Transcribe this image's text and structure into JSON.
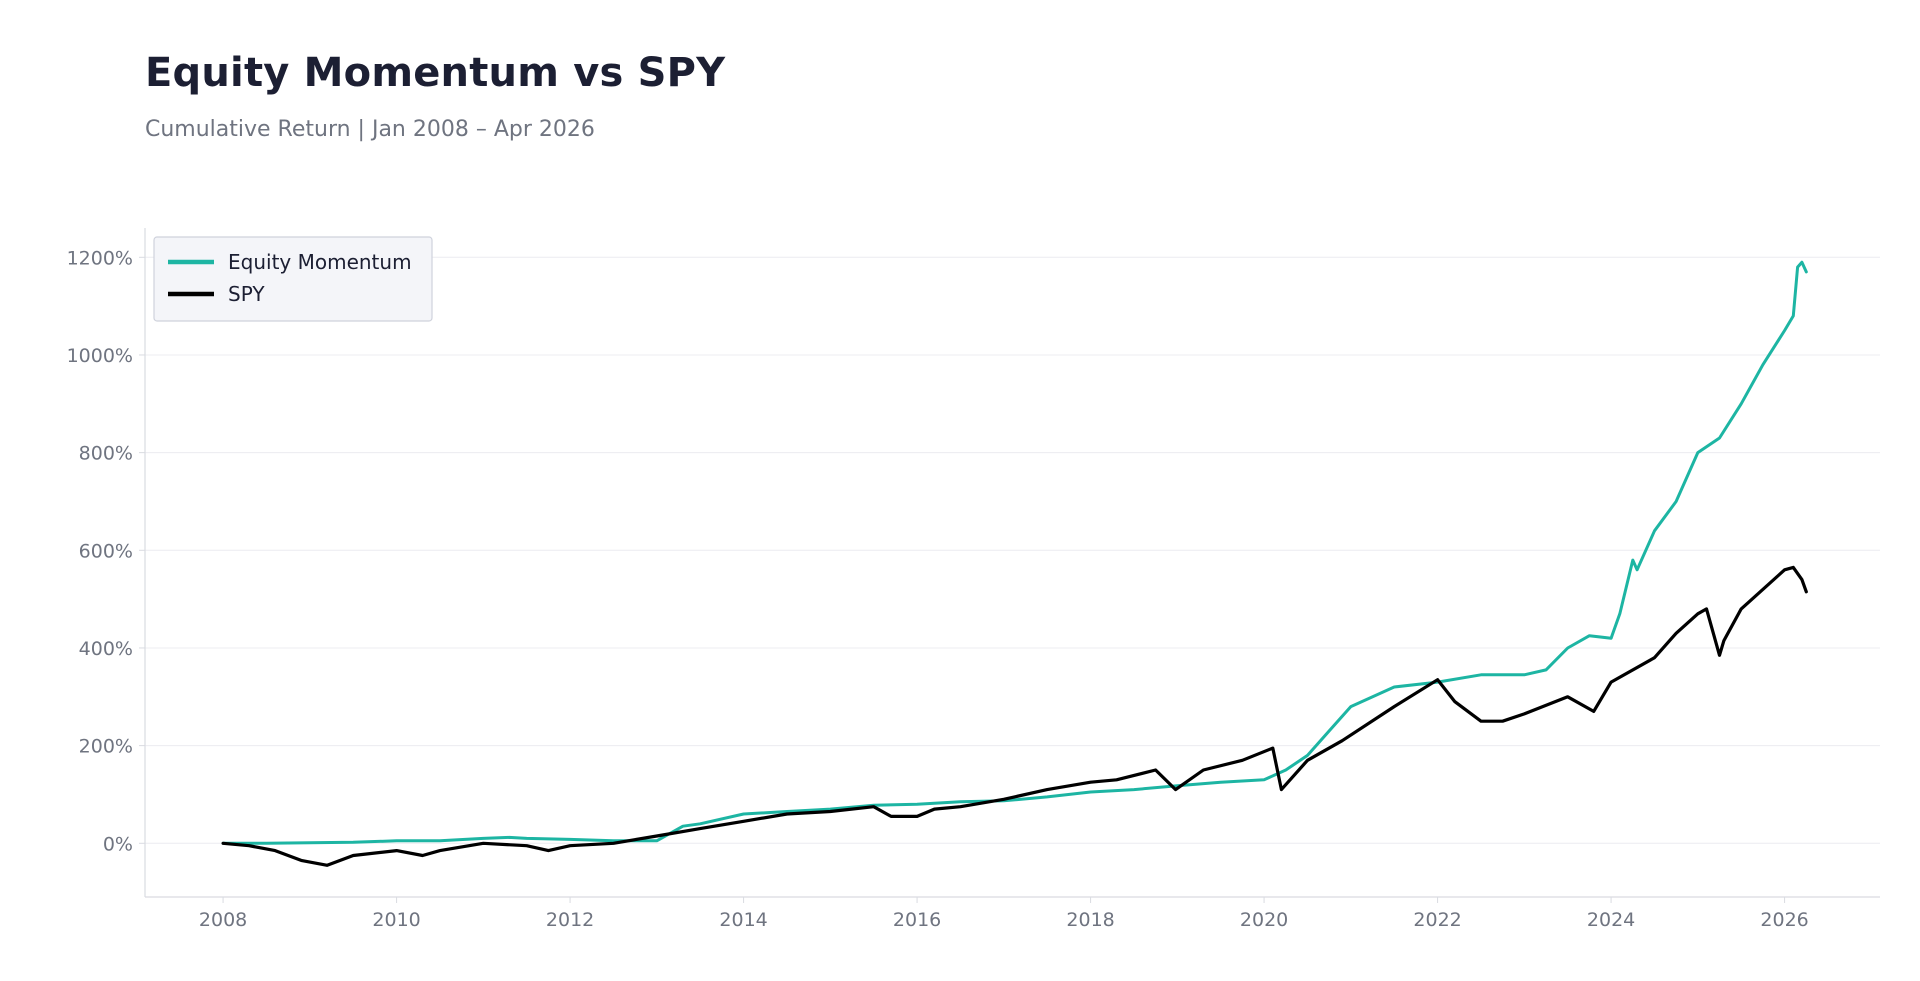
{
  "header": {
    "title": "Equity Momentum vs SPY",
    "subtitle": "Cumulative Return | Jan 2008 – Apr 2026"
  },
  "colors": {
    "momentum": "#1db5a3",
    "spy": "#000000",
    "grid": "#ececf0",
    "axis": "#d9dbe1",
    "legend_bg": "#f4f5f9",
    "legend_border": "#cfd2dc"
  },
  "chart_data": {
    "type": "line",
    "title": "Equity Momentum vs SPY",
    "subtitle": "Cumulative Return | Jan 2008 – Apr 2026",
    "xlabel": "",
    "ylabel": "",
    "xlim": [
      2007.1,
      2027.1
    ],
    "ylim": [
      -110,
      1260
    ],
    "x_ticks": [
      2008,
      2010,
      2012,
      2014,
      2016,
      2018,
      2020,
      2022,
      2024,
      2026
    ],
    "x_tick_labels": [
      "2008",
      "2010",
      "2012",
      "2014",
      "2016",
      "2018",
      "2020",
      "2022",
      "2024",
      "2026"
    ],
    "y_ticks": [
      0,
      200,
      400,
      600,
      800,
      1000,
      1200
    ],
    "y_tick_labels": [
      "0%",
      "200%",
      "400%",
      "600%",
      "800%",
      "1000%",
      "1200%"
    ],
    "grid": "horizontal",
    "legend_position": "top-left",
    "series": [
      {
        "name": "Equity Momentum",
        "color": "#1db5a3",
        "x": [
          2008.0,
          2008.5,
          2009.0,
          2009.5,
          2010.0,
          2010.5,
          2011.0,
          2011.3,
          2011.5,
          2012.0,
          2012.5,
          2013.0,
          2013.3,
          2013.5,
          2014.0,
          2014.5,
          2015.0,
          2015.5,
          2016.0,
          2016.5,
          2017.0,
          2017.5,
          2018.0,
          2018.5,
          2019.0,
          2019.5,
          2020.0,
          2020.25,
          2020.5,
          2020.75,
          2021.0,
          2021.5,
          2022.0,
          2022.5,
          2023.0,
          2023.25,
          2023.5,
          2023.75,
          2024.0,
          2024.1,
          2024.25,
          2024.3,
          2024.5,
          2024.75,
          2025.0,
          2025.25,
          2025.5,
          2025.75,
          2026.0,
          2026.1,
          2026.15,
          2026.2,
          2026.25
        ],
        "y": [
          0,
          0,
          1,
          2,
          5,
          5,
          10,
          12,
          10,
          8,
          5,
          5,
          35,
          40,
          60,
          65,
          70,
          78,
          80,
          85,
          87,
          95,
          105,
          110,
          118,
          125,
          130,
          150,
          180,
          230,
          280,
          320,
          330,
          345,
          345,
          355,
          400,
          425,
          420,
          470,
          580,
          560,
          640,
          700,
          800,
          830,
          900,
          980,
          1050,
          1080,
          1180,
          1190,
          1170
        ]
      },
      {
        "name": "SPY",
        "color": "#000000",
        "x": [
          2008.0,
          2008.3,
          2008.6,
          2008.9,
          2009.2,
          2009.5,
          2010.0,
          2010.3,
          2010.5,
          2011.0,
          2011.5,
          2011.75,
          2012.0,
          2012.5,
          2013.0,
          2013.5,
          2014.0,
          2014.5,
          2015.0,
          2015.5,
          2015.7,
          2016.0,
          2016.2,
          2016.5,
          2017.0,
          2017.5,
          2018.0,
          2018.3,
          2018.75,
          2018.98,
          2019.3,
          2019.75,
          2020.1,
          2020.2,
          2020.5,
          2020.9,
          2021.5,
          2022.0,
          2022.2,
          2022.5,
          2022.75,
          2023.0,
          2023.5,
          2023.8,
          2024.0,
          2024.5,
          2024.75,
          2025.0,
          2025.1,
          2025.25,
          2025.3,
          2025.5,
          2026.0,
          2026.1,
          2026.2,
          2026.25
        ],
        "y": [
          0,
          -5,
          -15,
          -35,
          -45,
          -25,
          -15,
          -25,
          -15,
          0,
          -5,
          -15,
          -5,
          0,
          15,
          30,
          45,
          60,
          65,
          75,
          55,
          55,
          70,
          75,
          90,
          110,
          125,
          130,
          150,
          110,
          150,
          170,
          195,
          110,
          170,
          210,
          280,
          335,
          290,
          250,
          250,
          265,
          300,
          270,
          330,
          380,
          430,
          470,
          480,
          385,
          415,
          480,
          560,
          565,
          540,
          515
        ]
      }
    ]
  }
}
